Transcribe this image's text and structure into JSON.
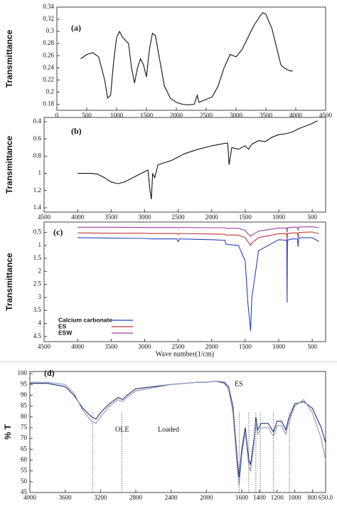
{
  "chart_data": [
    {
      "type": "line",
      "panel_label": "(a)",
      "ylabel": "Transmittance",
      "x": [
        400,
        500,
        600,
        700,
        800,
        850,
        900,
        950,
        1000,
        1050,
        1100,
        1150,
        1200,
        1250,
        1300,
        1350,
        1400,
        1450,
        1500,
        1550,
        1600,
        1650,
        1700,
        1800,
        1900,
        2000,
        2100,
        2200,
        2300,
        2350,
        2380,
        2400,
        2500,
        2600,
        2700,
        2800,
        2900,
        3000,
        3100,
        3200,
        3300,
        3400,
        3450,
        3500,
        3600,
        3700,
        3750,
        3800,
        3900,
        3950
      ],
      "series": [
        {
          "color": "#111111",
          "values": [
            0.255,
            0.262,
            0.265,
            0.258,
            0.22,
            0.19,
            0.195,
            0.25,
            0.29,
            0.3,
            0.29,
            0.285,
            0.28,
            0.24,
            0.215,
            0.24,
            0.255,
            0.245,
            0.225,
            0.27,
            0.297,
            0.293,
            0.265,
            0.21,
            0.19,
            0.183,
            0.18,
            0.179,
            0.18,
            0.195,
            0.183,
            0.184,
            0.188,
            0.192,
            0.21,
            0.24,
            0.262,
            0.258,
            0.27,
            0.29,
            0.31,
            0.325,
            0.331,
            0.328,
            0.305,
            0.265,
            0.245,
            0.24,
            0.235,
            0.235
          ]
        }
      ],
      "xlim": [
        0,
        4500
      ],
      "xticks": [
        0,
        500,
        1000,
        1500,
        2000,
        2500,
        3000,
        3500,
        4000,
        4500
      ],
      "ylim": [
        0.17,
        0.34
      ],
      "yticks": [
        0.18,
        0.2,
        0.22,
        0.24,
        0.26,
        0.28,
        0.3,
        0.32,
        0.34
      ]
    },
    {
      "type": "line",
      "panel_label": "(b)",
      "ylabel": "Transmittance",
      "x": [
        4000,
        3800,
        3700,
        3600,
        3500,
        3400,
        3300,
        3100,
        3000,
        2950,
        2920,
        2900,
        2880,
        2850,
        2800,
        2600,
        2400,
        2200,
        2000,
        1800,
        1760,
        1740,
        1720,
        1700,
        1600,
        1500,
        1450,
        1400,
        1300,
        1200,
        1100,
        1000,
        900,
        800,
        700,
        600,
        500,
        420
      ],
      "series": [
        {
          "color": "#111111",
          "values": [
            1.0,
            1.0,
            1.01,
            1.05,
            1.1,
            1.12,
            1.1,
            1.02,
            0.98,
            0.96,
            1.2,
            1.3,
            1.0,
            1.05,
            0.9,
            0.85,
            0.77,
            0.72,
            0.68,
            0.65,
            0.65,
            0.9,
            0.8,
            0.7,
            0.72,
            0.68,
            0.72,
            0.66,
            0.62,
            0.63,
            0.58,
            0.55,
            0.54,
            0.52,
            0.48,
            0.45,
            0.42,
            0.39
          ]
        }
      ],
      "xlim": [
        4500,
        300
      ],
      "xticks": [
        4500,
        4000,
        3500,
        3000,
        2500,
        2000,
        1500,
        1000,
        500
      ],
      "ylim": [
        1.45,
        0.35
      ],
      "yticks": [
        0.4,
        0.6,
        0.8,
        1,
        1.2,
        1.4
      ]
    },
    {
      "type": "line",
      "panel_label": "(c)",
      "ylabel": "Transmittance",
      "xlabel": "Wave number(1/cm)",
      "x": [
        4000,
        3500,
        3000,
        2900,
        2520,
        2500,
        2480,
        2000,
        1800,
        1790,
        1600,
        1500,
        1460,
        1430,
        1420,
        1400,
        1300,
        1000,
        880,
        875,
        870,
        800,
        720,
        712,
        700,
        500,
        400
      ],
      "series": [
        {
          "name": "Calcium carbonate",
          "color": "#2b3fbf",
          "values": [
            0.7,
            0.72,
            0.73,
            0.75,
            0.75,
            0.85,
            0.75,
            0.78,
            0.8,
            0.95,
            1.0,
            1.6,
            3.2,
            4.0,
            4.3,
            3.0,
            1.2,
            0.78,
            0.8,
            3.2,
            0.8,
            0.75,
            0.75,
            1.05,
            0.7,
            0.7,
            0.85
          ]
        },
        {
          "name": "ES",
          "color": "#c0353a",
          "values": [
            0.52,
            0.53,
            0.53,
            0.54,
            0.54,
            0.58,
            0.54,
            0.56,
            0.57,
            0.6,
            0.6,
            0.7,
            0.85,
            0.95,
            1.0,
            0.9,
            0.7,
            0.55,
            0.55,
            0.8,
            0.55,
            0.52,
            0.52,
            0.7,
            0.5,
            0.48,
            0.55
          ]
        },
        {
          "name": "ESW",
          "color": "#9b3f9f",
          "values": [
            0.3,
            0.3,
            0.31,
            0.31,
            0.31,
            0.33,
            0.31,
            0.32,
            0.32,
            0.34,
            0.34,
            0.42,
            0.55,
            0.62,
            0.65,
            0.6,
            0.45,
            0.33,
            0.33,
            0.5,
            0.33,
            0.3,
            0.3,
            0.42,
            0.29,
            0.28,
            0.32
          ]
        }
      ],
      "xlim": [
        4500,
        300
      ],
      "xticks": [
        4500,
        4000,
        3500,
        3000,
        2500,
        2000,
        1500,
        1000,
        500
      ],
      "ylim": [
        4.7,
        0.1
      ],
      "yticks": [
        0.5,
        1,
        1.5,
        2,
        2.5,
        3,
        3.5,
        4,
        4.5
      ]
    },
    {
      "type": "line",
      "panel_label": "(d)",
      "ylabel": "% T",
      "annotations": [
        "ES",
        "OLE",
        "Loaded"
      ],
      "x": [
        4000,
        3800,
        3600,
        3500,
        3400,
        3300,
        3250,
        3200,
        3100,
        3000,
        2950,
        2900,
        2800,
        2400,
        2100,
        2000,
        1900,
        1800,
        1750,
        1700,
        1650,
        1630,
        1600,
        1560,
        1520,
        1500,
        1460,
        1440,
        1420,
        1380,
        1300,
        1240,
        1200,
        1150,
        1100,
        1070,
        1000,
        900,
        800,
        700,
        650
      ],
      "series": [
        {
          "color": "#1d2f6f",
          "values": [
            95.5,
            95.5,
            94,
            90,
            84,
            80,
            79,
            82,
            86,
            89,
            88,
            90,
            93,
            95,
            96,
            96,
            96.5,
            96,
            94,
            85,
            60,
            52,
            65,
            75,
            60,
            58,
            70,
            80,
            74,
            77,
            77,
            73,
            78,
            78,
            74,
            79,
            86,
            87,
            84,
            75,
            68
          ]
        },
        {
          "color": "#8796b5",
          "values": [
            96,
            96,
            95,
            91,
            83,
            78,
            77,
            80,
            85,
            88,
            87,
            89,
            92,
            95,
            96,
            96,
            96.5,
            95.5,
            93,
            82,
            56,
            48,
            62,
            73,
            57,
            55,
            68,
            78,
            72,
            75,
            75,
            71,
            76,
            76,
            72,
            77,
            85,
            88,
            82,
            70,
            60
          ]
        }
      ],
      "peak_lines": [
        3290,
        2960,
        1630,
        1520,
        1440,
        1390,
        1240,
        1060
      ],
      "xlim": [
        4000,
        650
      ],
      "xticks": [
        4000,
        3600,
        3200,
        2800,
        2400,
        2000,
        1600,
        1400,
        1200,
        1000,
        800,
        {
          "value": 650,
          "label": "650.0"
        }
      ],
      "ylim": [
        45,
        101
      ],
      "yticks": [
        45,
        50,
        55,
        60,
        65,
        70,
        75,
        80,
        85,
        90,
        95,
        100
      ]
    }
  ]
}
